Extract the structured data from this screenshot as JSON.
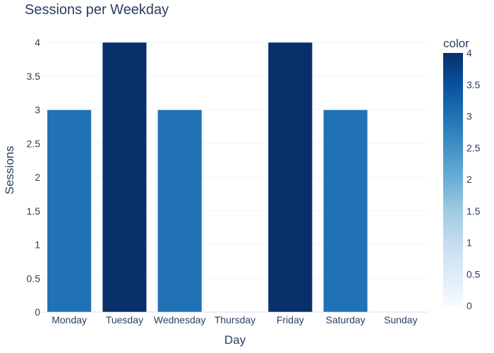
{
  "chart_data": {
    "type": "bar",
    "title": "Sessions per Weekday",
    "xlabel": "Day",
    "ylabel": "Sessions",
    "categories": [
      "Monday",
      "Tuesday",
      "Wednesday",
      "Thursday",
      "Friday",
      "Saturday",
      "Sunday"
    ],
    "values": [
      3,
      4,
      3,
      0,
      4,
      3,
      0
    ],
    "ylim": [
      0,
      4
    ],
    "yticks": [
      "0",
      "0.5",
      "1",
      "1.5",
      "2",
      "2.5",
      "3",
      "3.5",
      "4"
    ],
    "grid": true,
    "colorbar": {
      "title": "color",
      "range": [
        0,
        4
      ],
      "ticks": [
        "0",
        "0.5",
        "1",
        "1.5",
        "2",
        "2.5",
        "3",
        "3.5",
        "4"
      ],
      "colorscale": [
        "#f7fbff",
        "#deebf7",
        "#c6dbef",
        "#9ecae1",
        "#6baed6",
        "#4292c6",
        "#2171b5",
        "#08519c",
        "#08306b"
      ]
    }
  }
}
